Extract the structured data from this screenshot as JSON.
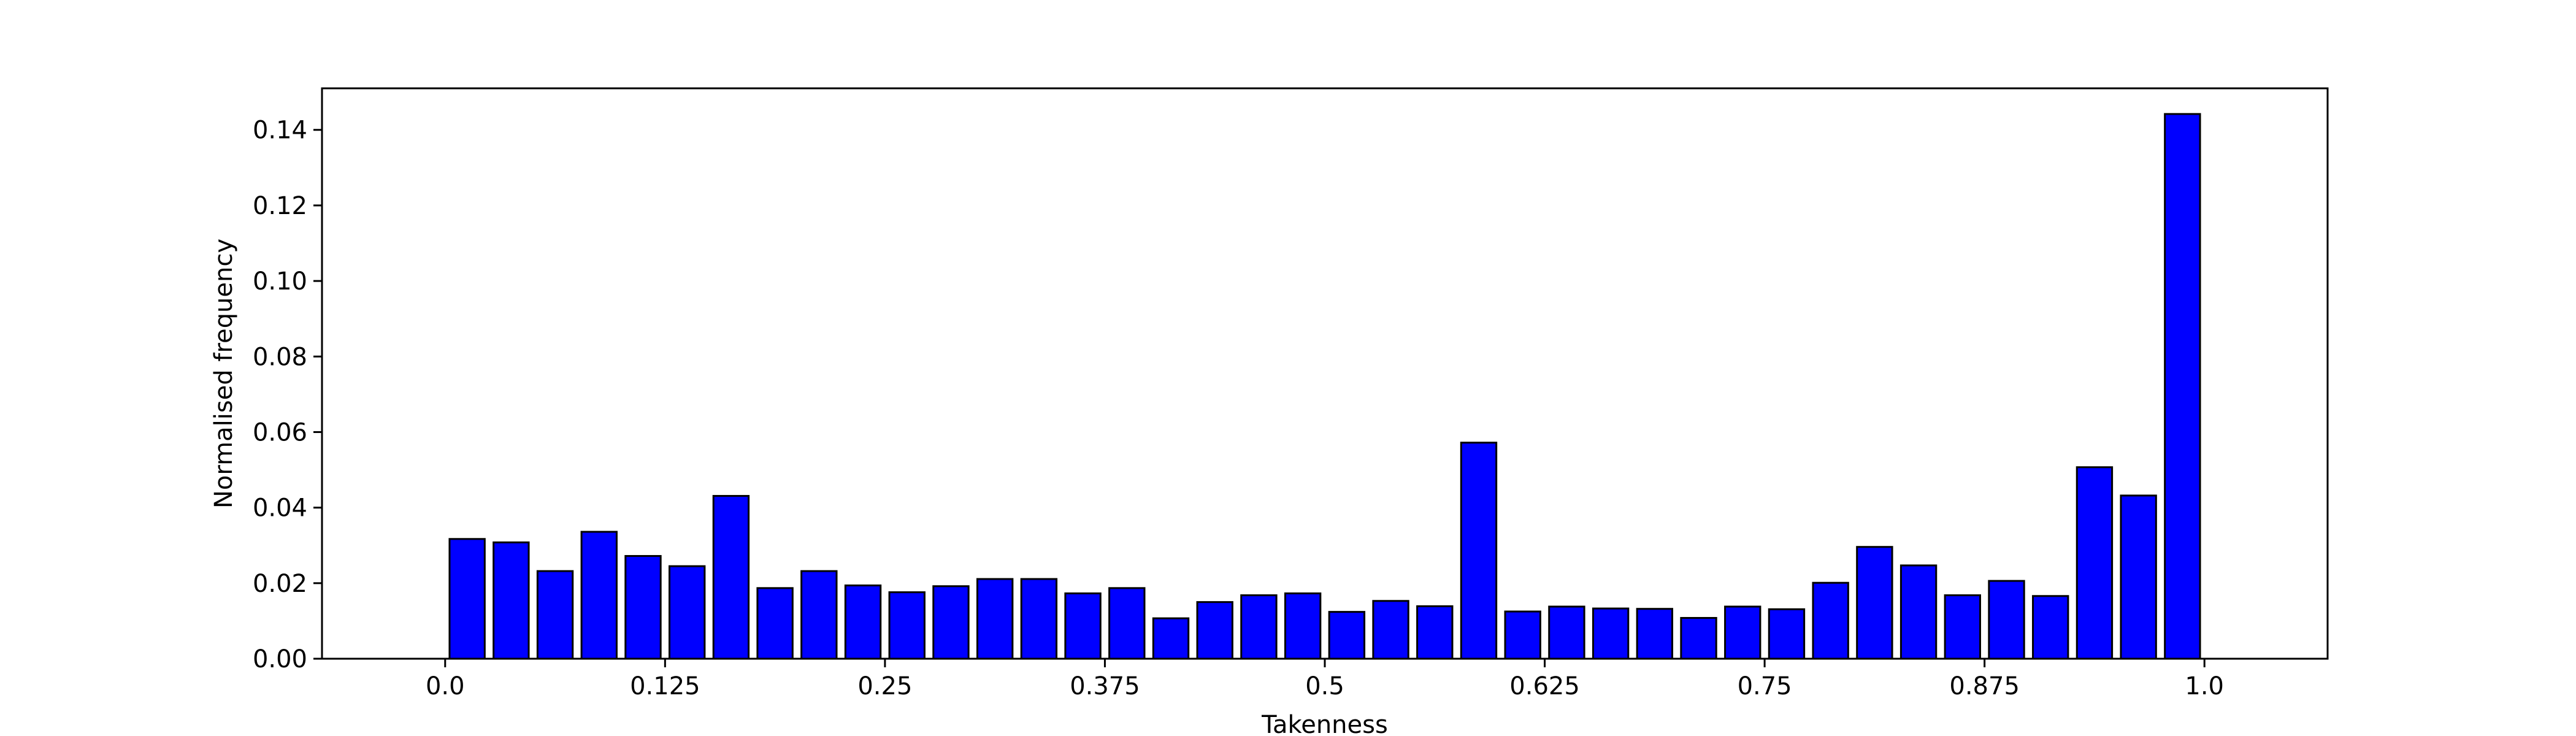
{
  "chart_data": {
    "type": "bar",
    "title": "",
    "xlabel": "Takenness",
    "ylabel": "Normalised frequency",
    "xlim": [
      -0.07,
      1.07
    ],
    "ylim": [
      0,
      0.151
    ],
    "grid": false,
    "legend": "none",
    "bar_color": "#0000ff",
    "edge_color": "#000000",
    "x_ticks": [
      {
        "value": 0.0,
        "label": "0.0"
      },
      {
        "value": 0.125,
        "label": "0.125"
      },
      {
        "value": 0.25,
        "label": "0.25"
      },
      {
        "value": 0.375,
        "label": "0.375"
      },
      {
        "value": 0.5,
        "label": "0.5"
      },
      {
        "value": 0.625,
        "label": "0.625"
      },
      {
        "value": 0.75,
        "label": "0.75"
      },
      {
        "value": 0.875,
        "label": "0.875"
      },
      {
        "value": 1.0,
        "label": "1.0"
      }
    ],
    "y_ticks": [
      {
        "value": 0.0,
        "label": "0.00"
      },
      {
        "value": 0.02,
        "label": "0.02"
      },
      {
        "value": 0.04,
        "label": "0.04"
      },
      {
        "value": 0.06,
        "label": "0.06"
      },
      {
        "value": 0.08,
        "label": "0.08"
      },
      {
        "value": 0.1,
        "label": "0.10"
      },
      {
        "value": 0.12,
        "label": "0.12"
      },
      {
        "value": 0.14,
        "label": "0.14"
      }
    ],
    "bins": [
      {
        "x0": 0.0,
        "x1": 0.025,
        "value": 0.0317
      },
      {
        "x0": 0.025,
        "x1": 0.05,
        "value": 0.0308
      },
      {
        "x0": 0.05,
        "x1": 0.075,
        "value": 0.0232
      },
      {
        "x0": 0.075,
        "x1": 0.1,
        "value": 0.0336
      },
      {
        "x0": 0.1,
        "x1": 0.125,
        "value": 0.0272
      },
      {
        "x0": 0.125,
        "x1": 0.15,
        "value": 0.0245
      },
      {
        "x0": 0.15,
        "x1": 0.175,
        "value": 0.0431
      },
      {
        "x0": 0.175,
        "x1": 0.2,
        "value": 0.0187
      },
      {
        "x0": 0.2,
        "x1": 0.225,
        "value": 0.0232
      },
      {
        "x0": 0.225,
        "x1": 0.25,
        "value": 0.0194
      },
      {
        "x0": 0.25,
        "x1": 0.275,
        "value": 0.0176
      },
      {
        "x0": 0.275,
        "x1": 0.3,
        "value": 0.0192
      },
      {
        "x0": 0.3,
        "x1": 0.325,
        "value": 0.0211
      },
      {
        "x0": 0.325,
        "x1": 0.35,
        "value": 0.0211
      },
      {
        "x0": 0.35,
        "x1": 0.375,
        "value": 0.0173
      },
      {
        "x0": 0.375,
        "x1": 0.4,
        "value": 0.0187
      },
      {
        "x0": 0.4,
        "x1": 0.425,
        "value": 0.0107
      },
      {
        "x0": 0.425,
        "x1": 0.45,
        "value": 0.015
      },
      {
        "x0": 0.45,
        "x1": 0.475,
        "value": 0.0168
      },
      {
        "x0": 0.475,
        "x1": 0.5,
        "value": 0.0173
      },
      {
        "x0": 0.5,
        "x1": 0.525,
        "value": 0.0124
      },
      {
        "x0": 0.525,
        "x1": 0.55,
        "value": 0.0153
      },
      {
        "x0": 0.55,
        "x1": 0.575,
        "value": 0.0139
      },
      {
        "x0": 0.575,
        "x1": 0.6,
        "value": 0.0572
      },
      {
        "x0": 0.6,
        "x1": 0.625,
        "value": 0.0125
      },
      {
        "x0": 0.625,
        "x1": 0.65,
        "value": 0.0138
      },
      {
        "x0": 0.65,
        "x1": 0.675,
        "value": 0.0133
      },
      {
        "x0": 0.675,
        "x1": 0.7,
        "value": 0.0132
      },
      {
        "x0": 0.7,
        "x1": 0.725,
        "value": 0.0108
      },
      {
        "x0": 0.725,
        "x1": 0.75,
        "value": 0.0138
      },
      {
        "x0": 0.75,
        "x1": 0.775,
        "value": 0.0131
      },
      {
        "x0": 0.775,
        "x1": 0.8,
        "value": 0.0201
      },
      {
        "x0": 0.8,
        "x1": 0.825,
        "value": 0.0296
      },
      {
        "x0": 0.825,
        "x1": 0.85,
        "value": 0.0247
      },
      {
        "x0": 0.85,
        "x1": 0.875,
        "value": 0.0168
      },
      {
        "x0": 0.875,
        "x1": 0.9,
        "value": 0.0206
      },
      {
        "x0": 0.9,
        "x1": 0.925,
        "value": 0.0166
      },
      {
        "x0": 0.925,
        "x1": 0.95,
        "value": 0.0507
      },
      {
        "x0": 0.95,
        "x1": 0.975,
        "value": 0.0432
      },
      {
        "x0": 0.975,
        "x1": 1.0,
        "value": 0.1442
      }
    ]
  }
}
